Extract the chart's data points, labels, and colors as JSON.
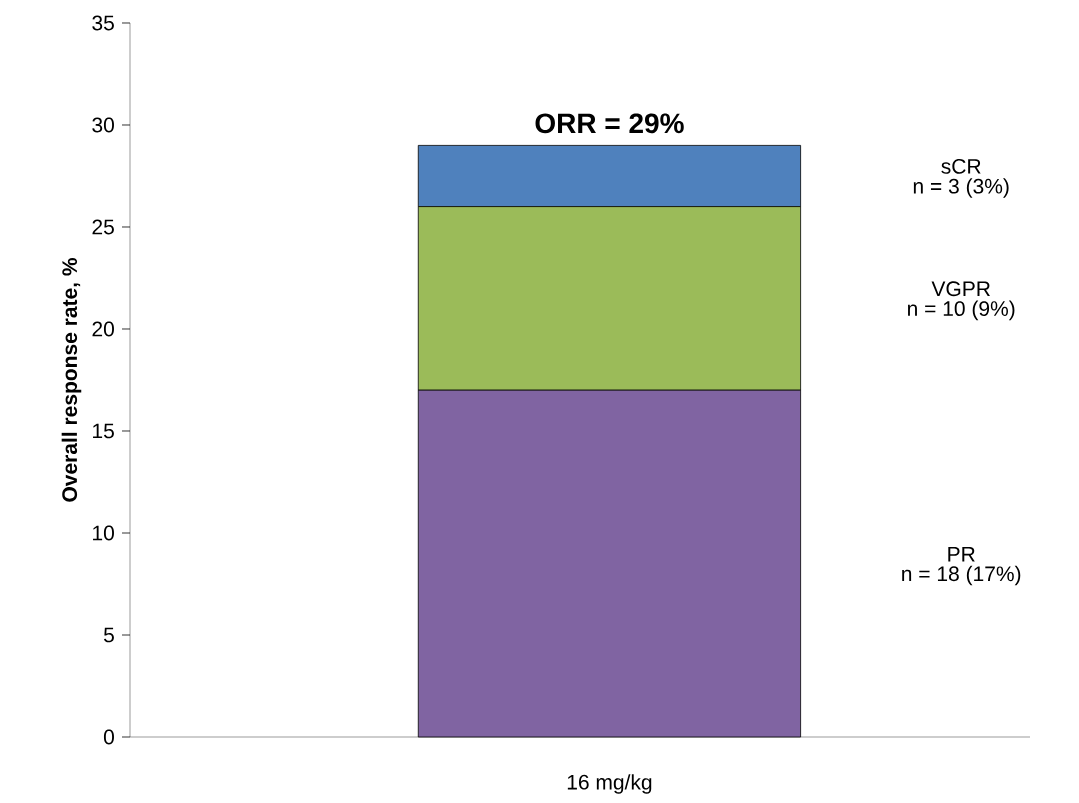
{
  "chart_data": {
    "type": "bar",
    "stacked": true,
    "title": "ORR = 29%",
    "ylabel": "Overall response rate, %",
    "categories": [
      "16 mg/kg"
    ],
    "series": [
      {
        "name": "PR",
        "color": "#8064a2",
        "values": [
          17
        ]
      },
      {
        "name": "VGPR",
        "color": "#9bbb59",
        "values": [
          9
        ]
      },
      {
        "name": "sCR",
        "color": "#4f81bd",
        "values": [
          3
        ]
      }
    ],
    "annotations": [
      "n = 18 (17%)",
      "n = 10 (9%)",
      "n = 3 (3%)"
    ],
    "ylim": [
      0,
      35
    ],
    "yticks": [
      0,
      5,
      10,
      15,
      20,
      25,
      30,
      35
    ],
    "grid": false
  }
}
